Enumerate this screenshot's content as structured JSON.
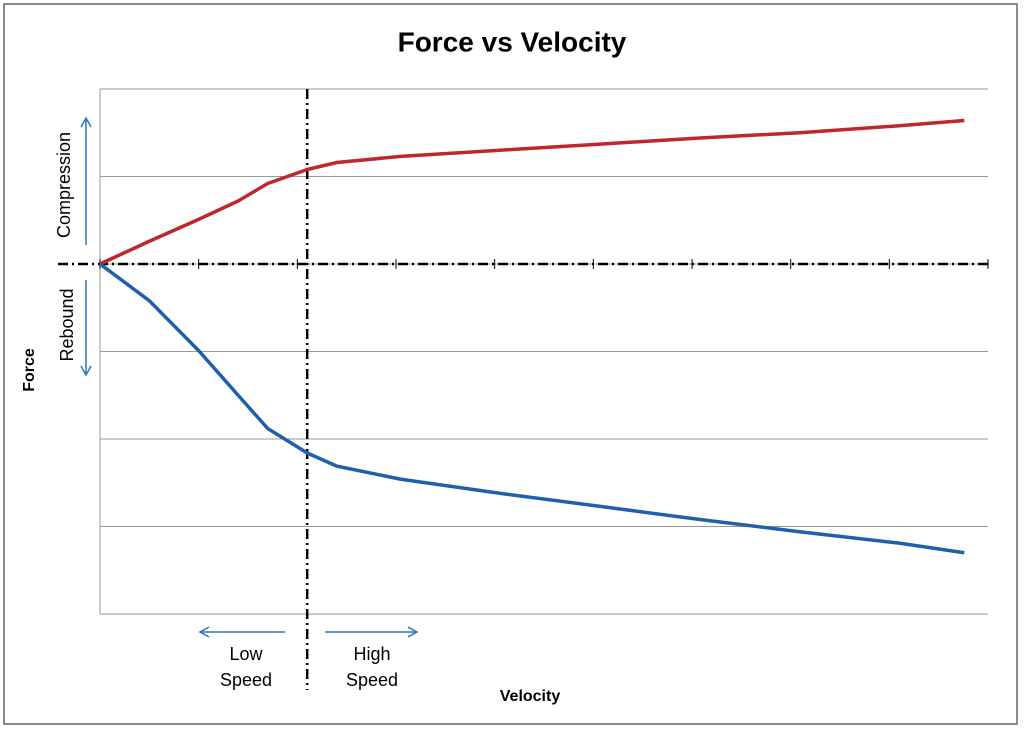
{
  "chart_data": {
    "type": "line",
    "title": "Force vs Velocity",
    "x_label": "Velocity",
    "y_label": "Force",
    "x": [
      0,
      0.5,
      1.0,
      1.4,
      1.7,
      2.1,
      2.4,
      3.05,
      4.05,
      5.07,
      6.08,
      7.09,
      8.1,
      8.76
    ],
    "series": [
      {
        "color": "#c0272d",
        "values": [
          0,
          0.26,
          0.51,
          0.72,
          0.92,
          1.08,
          1.16,
          1.23,
          1.3,
          1.37,
          1.44,
          1.5,
          1.58,
          1.64
        ]
      },
      {
        "color": "#1f5fad",
        "values": [
          0,
          -0.42,
          -0.99,
          -1.5,
          -1.88,
          -2.16,
          -2.31,
          -2.46,
          -2.62,
          -2.77,
          -2.92,
          -3.06,
          -3.19,
          -3.3
        ]
      }
    ],
    "xlim": [
      0,
      9
    ],
    "xticks": [
      0,
      1,
      2,
      3,
      4,
      5,
      6,
      7,
      8,
      9
    ],
    "ylim": [
      -4,
      2
    ],
    "yticks": [
      -4,
      -3,
      -2,
      -1,
      0,
      1,
      2
    ],
    "grid": true,
    "divider_x": 2.1,
    "direction_labels": [
      "Compression",
      "Rebound"
    ],
    "speed_labels": [
      [
        "Low",
        "Speed"
      ],
      [
        "High",
        "Speed"
      ]
    ]
  }
}
